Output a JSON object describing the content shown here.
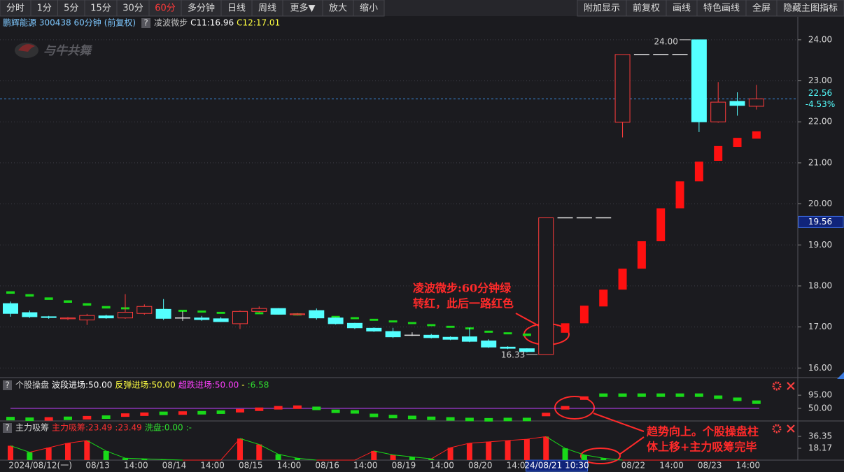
{
  "toolbar": {
    "left": [
      "分时",
      "1分",
      "5分",
      "15分",
      "30分",
      "60分",
      "多分钟",
      "日线",
      "周线",
      "更多▼",
      "放大",
      "缩小"
    ],
    "right": [
      "附加显示",
      "前复权",
      "画线",
      "特色画线",
      "全屏",
      "隐藏主图指标"
    ],
    "active_index": 5
  },
  "header": {
    "help": "?",
    "stock": "鹏辉能源 300438 60分钟",
    "adjust": "(前复权)",
    "indicator": "凌波微步",
    "c11": "C11:16.96",
    "c12": "C12:17.01"
  },
  "watermark": "与牛共舞",
  "chart_data": [
    {
      "type": "candlestick",
      "categories": [
        null,
        null,
        "2024/08/12(一)",
        null,
        null,
        "08/13",
        null,
        "14:00",
        null,
        "08/14",
        null,
        "14:00",
        null,
        "08/15",
        null,
        "14:00",
        null,
        "08/16",
        null,
        "14:00",
        null,
        "08/19",
        null,
        "14:00",
        null,
        "08/20",
        null,
        "14:00",
        null,
        "24/08/21 10:30",
        null,
        null,
        null,
        "08/22",
        null,
        "14:00",
        null,
        "08/23",
        null,
        "14:00"
      ],
      "open": [
        17.57,
        17.35,
        17.25,
        17.2,
        17.17,
        17.27,
        17.22,
        17.33,
        17.43,
        17.22,
        17.22,
        17.2,
        17.08,
        17.38,
        17.45,
        17.3,
        17.4,
        17.22,
        17.09,
        16.97,
        16.89,
        16.8,
        16.8,
        16.75,
        16.76,
        16.66,
        16.51,
        16.47,
        16.33,
        19.66,
        19.66,
        19.66,
        21.99,
        23.64,
        23.64,
        23.64,
        24.0,
        22.0,
        22.5,
        22.38
      ],
      "high": [
        17.62,
        17.4,
        17.27,
        17.24,
        17.32,
        17.3,
        17.8,
        17.55,
        17.68,
        17.38,
        17.27,
        17.24,
        17.4,
        17.5,
        17.46,
        17.34,
        17.45,
        17.23,
        17.1,
        16.99,
        16.98,
        16.87,
        16.83,
        16.77,
        16.98,
        16.7,
        16.53,
        16.48,
        19.66,
        19.66,
        19.66,
        19.66,
        23.64,
        23.64,
        23.64,
        23.64,
        24.0,
        22.97,
        22.72,
        22.9
      ],
      "low": [
        17.25,
        17.22,
        17.2,
        17.17,
        17.05,
        17.2,
        17.2,
        17.3,
        17.17,
        17.15,
        17.15,
        17.12,
        16.95,
        17.35,
        17.3,
        17.28,
        17.18,
        17.06,
        16.95,
        16.88,
        16.73,
        16.78,
        16.72,
        16.68,
        16.63,
        16.49,
        16.46,
        16.38,
        16.33,
        19.66,
        19.66,
        19.66,
        21.62,
        23.64,
        23.64,
        23.64,
        21.75,
        21.98,
        22.15,
        22.3
      ],
      "close": [
        17.33,
        17.25,
        17.23,
        17.22,
        17.28,
        17.22,
        17.36,
        17.5,
        17.21,
        17.22,
        17.18,
        17.13,
        17.38,
        17.45,
        17.31,
        17.32,
        17.22,
        17.08,
        16.98,
        16.9,
        16.76,
        16.8,
        16.74,
        16.7,
        16.65,
        16.51,
        16.48,
        16.4,
        19.66,
        19.66,
        19.66,
        19.66,
        23.64,
        23.64,
        23.64,
        23.64,
        22.0,
        22.48,
        22.4,
        22.56
      ],
      "up_color": "#ff3c3c",
      "down_color": "#54ffff",
      "flat_color": "#e8e8e8",
      "ylim": [
        15.8,
        24.22
      ],
      "yticks": [
        {
          "value": 24,
          "label": "24.00"
        },
        {
          "value": 23,
          "label": "23.00"
        },
        {
          "value": 22,
          "label": "22.00"
        },
        {
          "value": 21,
          "label": "21.00"
        },
        {
          "value": 20,
          "label": "20.00"
        },
        {
          "value": 19,
          "label": "19.00"
        },
        {
          "value": 18,
          "label": "18.00"
        },
        {
          "value": 17,
          "label": "17.00"
        },
        {
          "value": 16,
          "label": "16.00"
        }
      ],
      "grid": true,
      "last_price": 22.56,
      "last_change": "-4.53%",
      "cursor_price": 19.56,
      "high_label": {
        "value": 24,
        "label": "24.00"
      },
      "low_label": 16.33,
      "crosshair_index": 29,
      "lingbo": {
        "high": [
          17.87,
          17.8,
          17.72,
          17.65,
          17.58,
          17.51,
          17.48,
          17.46,
          17.44,
          17.42,
          17.4,
          17.37,
          17.36,
          17.36,
          17.35,
          17.33,
          17.3,
          17.27,
          17.24,
          17.2,
          17.16,
          17.12,
          17.07,
          17.03,
          16.99,
          16.91,
          16.87,
          16.84,
          16.84,
          17.09,
          17.52,
          17.91,
          18.42,
          19.09,
          19.89,
          20.55,
          21.03,
          21.41,
          21.61,
          21.77
        ],
        "low": [
          17.81,
          17.74,
          17.66,
          17.59,
          17.52,
          17.45,
          17.43,
          17.41,
          17.39,
          17.37,
          17.35,
          17.32,
          17.31,
          17.31,
          17.3,
          17.28,
          17.25,
          17.22,
          17.19,
          17.15,
          17.11,
          17.07,
          17.02,
          16.98,
          16.94,
          16.86,
          16.82,
          16.78,
          16.78,
          16.86,
          17.09,
          17.5,
          17.91,
          18.42,
          19.09,
          19.89,
          20.55,
          21.05,
          21.39,
          21.59
        ],
        "colors": [
          "#19d919",
          "#19d919",
          "#19d919",
          "#19d919",
          "#19d919",
          "#19d919",
          "#19d919",
          "#19d919",
          "#19d919",
          "#19d919",
          "#19d919",
          "#19d919",
          "#19d919",
          "#19d919",
          "#19d919",
          "#19d919",
          "#19d919",
          "#19d919",
          "#19d919",
          "#19d919",
          "#19d919",
          "#19d919",
          "#19d919",
          "#19d919",
          "#19d919",
          "#19d919",
          "#19d919",
          "#19d919",
          "#ff1010",
          "#ff1010",
          "#ff1010",
          "#ff1010",
          "#ff1010",
          "#ff1010",
          "#ff1010",
          "#ff1010",
          "#ff1010",
          "#ff1010",
          "#ff1010",
          "#ff1010"
        ]
      },
      "annotations": [
        {
          "lines": [
            "凌波微步:60分钟绿",
            "转红，此后一路红色"
          ],
          "color": "#ff2a2a"
        },
        {
          "lines": [
            "趋势向上。个股操盘柱",
            "体上移+主力吸筹完毕"
          ],
          "color": "#ff2a2a"
        }
      ]
    },
    {
      "type": "dash",
      "title": "个股操盘",
      "legend": [
        {
          "text": "波段进场:50.00",
          "color": "#ffffff"
        },
        {
          "text": "反弹进场:50.00",
          "color": "#ffff40"
        },
        {
          "text": "超跌进场:50.00",
          "color": "#ff40ff"
        },
        {
          "text": "-",
          "color": "#ffff40"
        },
        {
          "text": ":6.58",
          "color": "#30e030"
        }
      ],
      "values": [
        15,
        13,
        14,
        16,
        18,
        20,
        27,
        30,
        33,
        34,
        35,
        37,
        42,
        47,
        52,
        54,
        50,
        40,
        38,
        26,
        22,
        19,
        16,
        14,
        12,
        11,
        12,
        12,
        29,
        52,
        85,
        95,
        95,
        95,
        95,
        95,
        95,
        88,
        81,
        71
      ],
      "colors": [
        "#19d919",
        "#19d919",
        "#ff2020",
        "#19d919",
        "#ff2020",
        "#19d919",
        "#ff2020",
        "#ff2020",
        "#19d919",
        "#ff2020",
        "#19d919",
        "#19d919",
        "#ff2020",
        "#ff2020",
        "#ff2020",
        "#ff2020",
        "#19d919",
        "#19d919",
        "#19d919",
        "#19d919",
        "#19d919",
        "#19d919",
        "#19d919",
        "#19d919",
        "#19d919",
        "#19d919",
        "#19d919",
        "#19d919",
        "#ff2020",
        "#ff2020",
        "#ff2020",
        "#19d919",
        "#19d919",
        "#19d919",
        "#19d919",
        "#19d919",
        "#19d919",
        "#19d919",
        "#19d919",
        "#19d919"
      ],
      "ylim": [
        7,
        112
      ],
      "yticks": [
        {
          "value": 95,
          "label": "95.00"
        },
        {
          "value": 50,
          "label": "50.00"
        }
      ],
      "level": 50,
      "level_color": "#c040ff"
    },
    {
      "type": "bar",
      "title": "主力吸筹",
      "legend": [
        {
          "text": "主力吸筹:23.49",
          "color": "#ff3030"
        },
        {
          "text": ":23.49",
          "color": "#ff3030"
        },
        {
          "text": "洗盘:0.00",
          "color": "#30e030"
        },
        {
          "text": ":-",
          "color": "#30e030"
        }
      ],
      "values": [
        22,
        12,
        19,
        26,
        30,
        14,
        3,
        2,
        1,
        0,
        0,
        0,
        33,
        24,
        9,
        3,
        0,
        0,
        0,
        14,
        8,
        5,
        2,
        19,
        26,
        28,
        30,
        32,
        36,
        18,
        8,
        3,
        0,
        0,
        0,
        0,
        0,
        0,
        0,
        0
      ],
      "colors": [
        "#ff2020",
        "#19d919",
        "#ff2020",
        "#ff2020",
        "#ff2020",
        "#19d919",
        "#19d919",
        "#19d919",
        "#19d919",
        "#19d919",
        "#19d919",
        "#19d919",
        "#ff2020",
        "#ff2020",
        "#19d919",
        "#19d919",
        "#19d919",
        "#19d919",
        "#19d919",
        "#ff2020",
        "#ff2020",
        "#19d919",
        "#19d919",
        "#ff2020",
        "#ff2020",
        "#ff2020",
        "#ff2020",
        "#ff2020",
        "#ff2020",
        "#19d919",
        "#19d919",
        "#19d919",
        "#19d919",
        "#19d919",
        "#19d919",
        "#19d919",
        "#19d919",
        "#19d919",
        "#19d919",
        "#19d919"
      ],
      "ylim": [
        0,
        42.8
      ],
      "yticks": [
        36.35,
        18.17
      ]
    }
  ]
}
